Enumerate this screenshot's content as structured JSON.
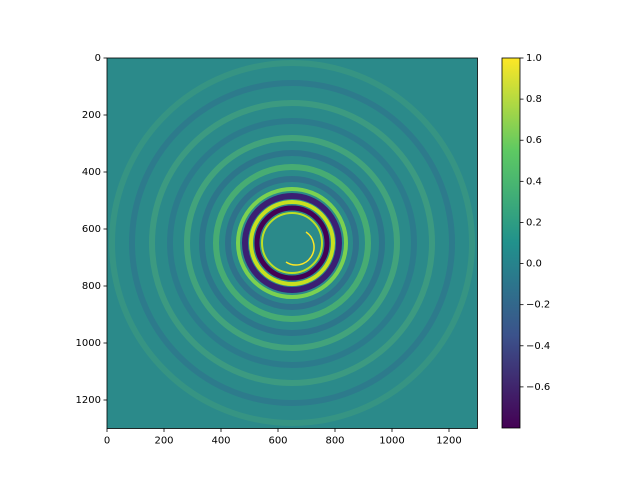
{
  "chart_data": {
    "type": "heatmap",
    "xlim": [
      0,
      1300
    ],
    "ylim": [
      1300,
      0
    ],
    "xticks": [
      0,
      200,
      400,
      600,
      800,
      1000,
      1200
    ],
    "yticks": [
      0,
      200,
      400,
      600,
      800,
      1000,
      1200
    ],
    "colorbar": {
      "clim": [
        -0.8,
        1.0
      ],
      "ticks": [
        {
          "value": 1.0,
          "label": "1.0"
        },
        0.8,
        0.6,
        0.4,
        0.2,
        {
          "value": 0.0,
          "label": "0.0"
        },
        {
          "value": -0.2,
          "label": "−0.2"
        },
        {
          "value": -0.4,
          "label": "−0.4"
        },
        {
          "value": -0.6,
          "label": "−0.6"
        }
      ],
      "colormap": [
        "#440154",
        "#3b528b",
        "#21918c",
        "#5ec962",
        "#fde725"
      ]
    }
  }
}
